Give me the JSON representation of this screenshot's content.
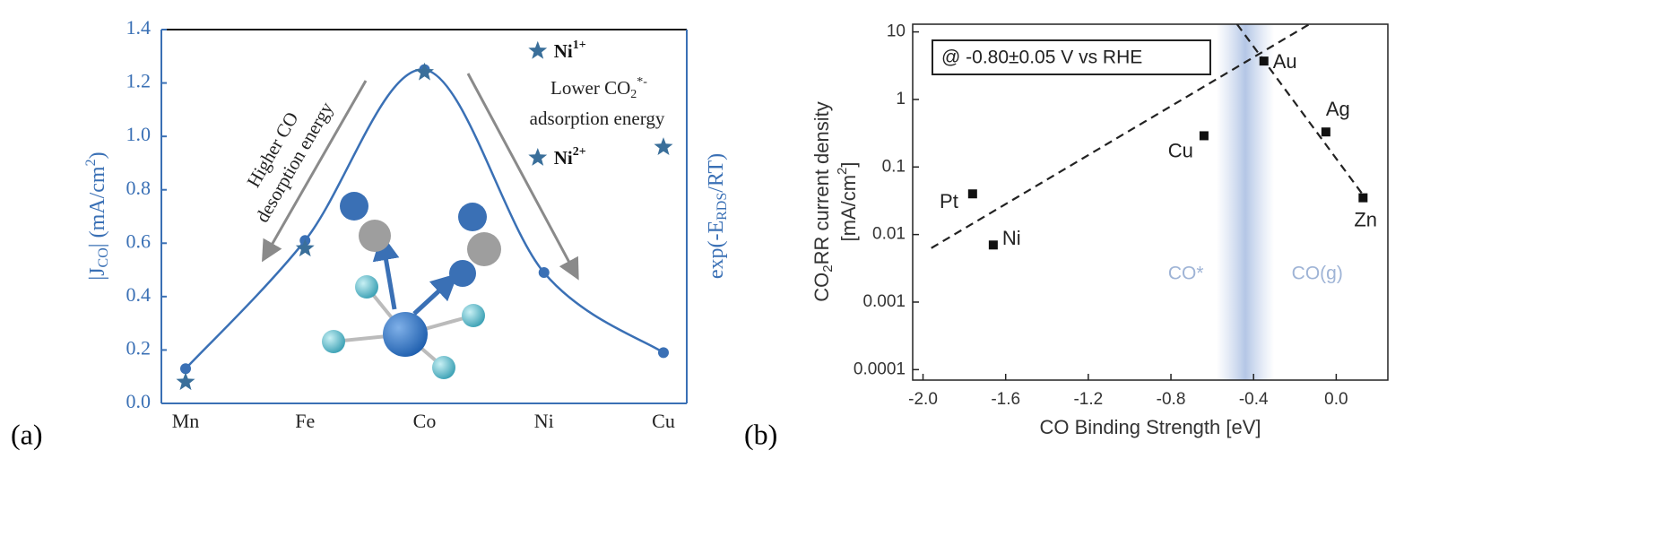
{
  "chart_data": [
    {
      "type": "line",
      "panel_label": "(a)",
      "categories": [
        "Mn",
        "Fe",
        "Co",
        "Ni",
        "Cu"
      ],
      "y_label": [
        "|J",
        "CO",
        "| (mA/cm",
        "2",
        ")"
      ],
      "y2_label": [
        "exp(-E",
        "RDS",
        "/RT)"
      ],
      "ylim": [
        0,
        1.4
      ],
      "yticks": [
        {
          "value": 0,
          "label": "0.0"
        },
        0.2,
        0.4,
        0.6,
        0.8,
        {
          "value": 1,
          "label": "1.0"
        },
        1.2,
        1.4
      ],
      "series": [
        {
          "marker": "circle",
          "color": "#3a70b5",
          "values": [
            0.13,
            0.61,
            1.25,
            0.49,
            0.19
          ]
        },
        {
          "marker": "star",
          "color": "#3a6f9a",
          "values": [
            0.08,
            0.58,
            1.24,
            null,
            0.96
          ]
        }
      ],
      "labeled_points": [
        {
          "category": "Ni",
          "value": 1.32,
          "label": [
            "Ni",
            "1+"
          ]
        },
        {
          "category": "Ni",
          "value": 0.92,
          "label": [
            "Ni",
            "2+"
          ]
        }
      ],
      "annotations": {
        "left": [
          "Higher CO",
          "desorption energy"
        ],
        "right": [
          [
            "Lower CO",
            "2",
            "*-"
          ],
          "adsorption energy"
        ]
      }
    },
    {
      "type": "scatter",
      "panel_label": "(b)",
      "x_label": "CO Binding Strength [eV]",
      "y_label": [
        [
          "CO",
          "2",
          "RR current density"
        ],
        [
          "[mA/cm",
          "2",
          "]"
        ]
      ],
      "log_y": true,
      "xlim": [
        -2.05,
        0.25
      ],
      "ylim": [
        7e-05,
        13
      ],
      "xticks": [
        {
          "value": -2,
          "label": "-2.0"
        },
        -1.6,
        -1.2,
        -0.8,
        -0.4,
        {
          "value": 0,
          "label": "0.0"
        }
      ],
      "yticks": [
        0.0001,
        0.001,
        0.01,
        0.1,
        1,
        10
      ],
      "series": [
        {
          "color": "#111111",
          "labels": [
            "Pt",
            "Ni",
            "Cu",
            "Au",
            "Ag",
            "Zn"
          ],
          "x": [
            -1.76,
            -1.66,
            -0.64,
            -0.35,
            -0.05,
            0.13
          ],
          "values": [
            0.04,
            0.007,
            0.29,
            3.7,
            0.33,
            0.035
          ]
        }
      ],
      "fit_lines": [
        {
          "x": [
            -1.96,
            -0.13
          ],
          "values": [
            0.0063,
            13
          ]
        },
        {
          "x": [
            -0.48,
            0.14
          ],
          "values": [
            13,
            0.035
          ]
        }
      ],
      "shaded_band": [
        -0.58,
        -0.3
      ],
      "condition": "@ -0.80±0.05 V vs RHE",
      "region_labels": [
        "CO*",
        "CO(g)"
      ]
    }
  ]
}
